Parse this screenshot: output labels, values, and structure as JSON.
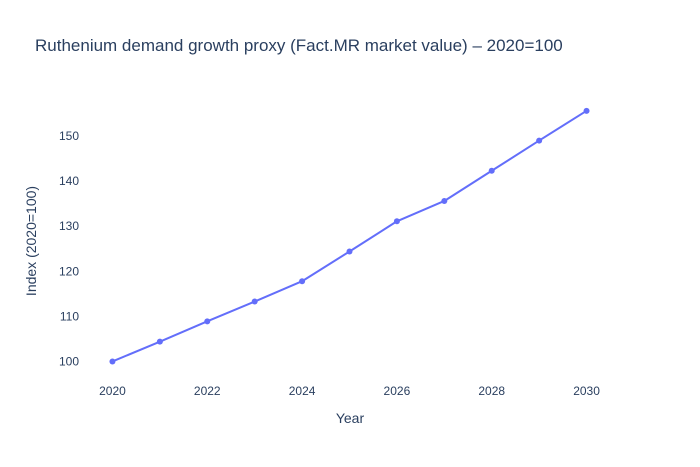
{
  "chart_data": {
    "type": "line",
    "title": "Ruthenium demand growth proxy (Fact.MR market value) – 2020=100",
    "xlabel": "Year",
    "ylabel": "Index (2020=100)",
    "x": [
      2020,
      2021,
      2022,
      2023,
      2024,
      2025,
      2026,
      2027,
      2028,
      2029,
      2030
    ],
    "series": [
      {
        "name": "Index",
        "values": [
          100,
          104.4,
          108.9,
          113.3,
          117.8,
          124.4,
          131.1,
          135.6,
          142.3,
          149,
          155.6
        ]
      }
    ],
    "xlim": [
      2019.4,
      2030.6
    ],
    "ylim": [
      97,
      158
    ],
    "xticks": [
      2020,
      2022,
      2024,
      2026,
      2028,
      2030
    ],
    "yticks": [
      100,
      110,
      120,
      130,
      140,
      150
    ],
    "grid": false,
    "legend": "none",
    "colors": {
      "line": "#636efa",
      "text": "#2a3f5f",
      "background": "#ffffff"
    }
  }
}
